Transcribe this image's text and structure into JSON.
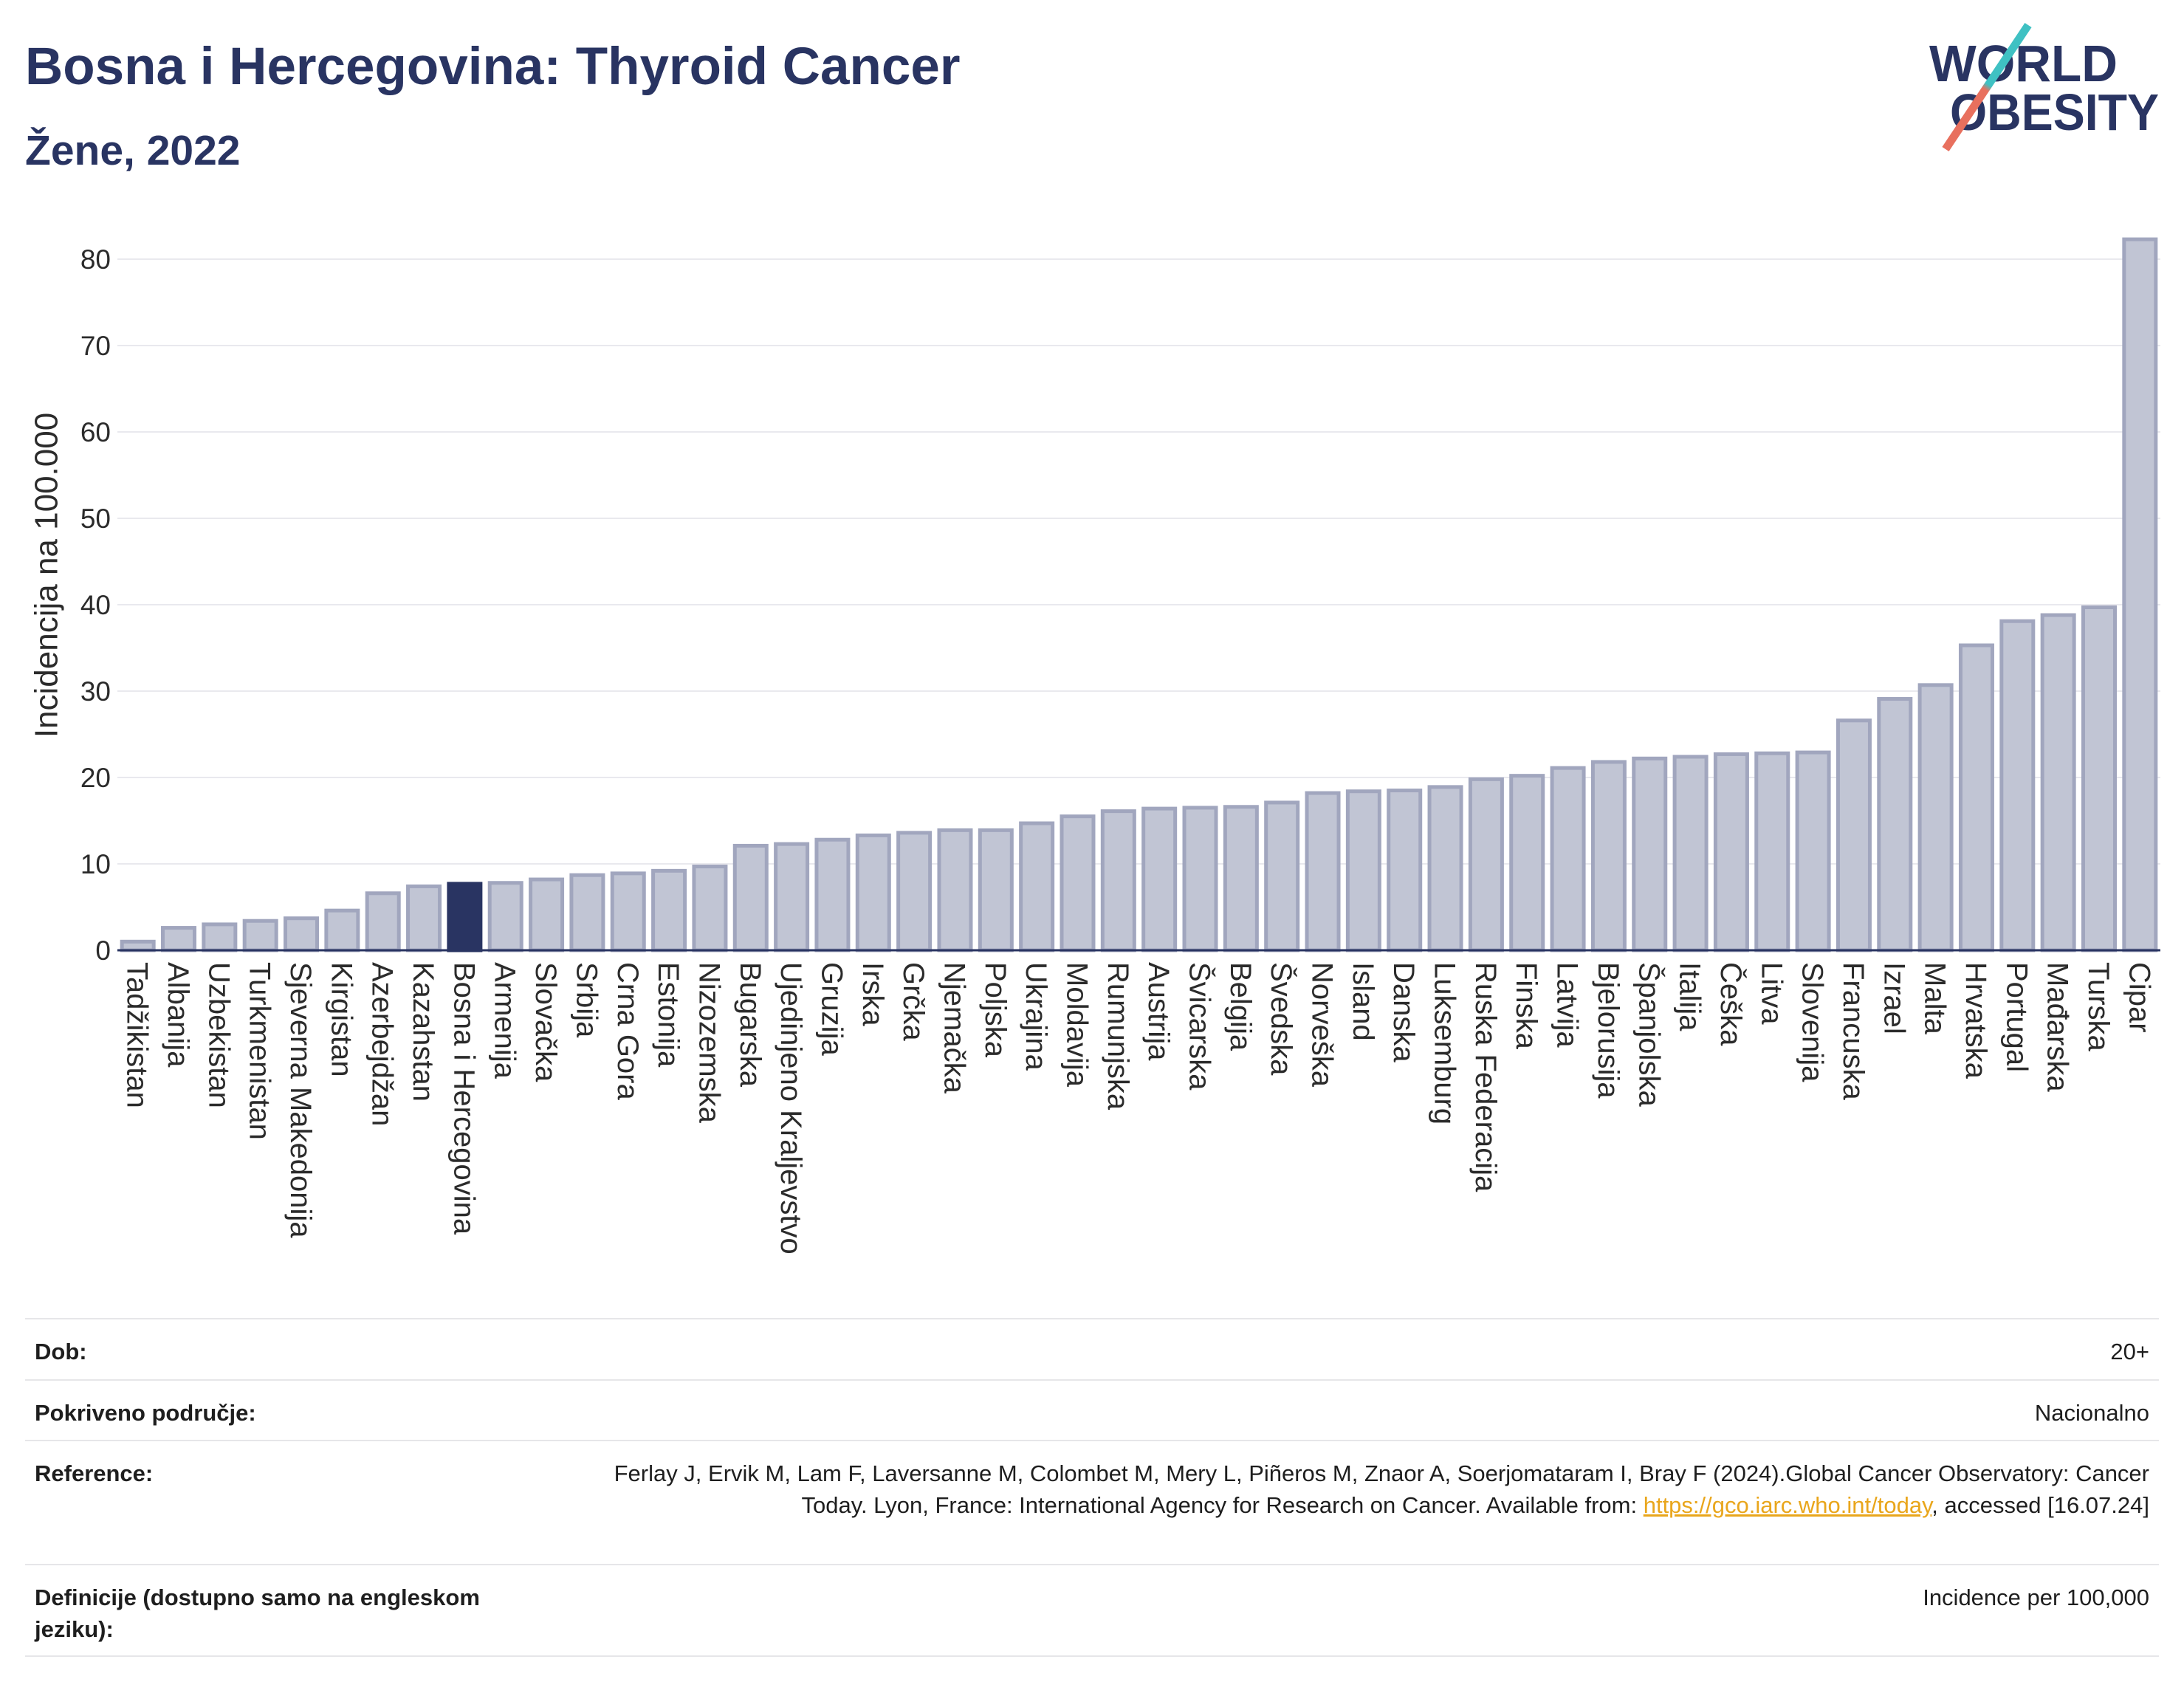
{
  "chart_data": {
    "type": "bar",
    "title": "Bosna i Hercegovina: Thyroid Cancer",
    "subtitle": "Žene, 2022",
    "xlabel": "",
    "ylabel": "Incidencija na 100.000",
    "ylim": [
      0,
      85
    ],
    "yticks": [
      0,
      10,
      20,
      30,
      40,
      50,
      60,
      70,
      80
    ],
    "grid": true,
    "highlight_index": 8,
    "categories": [
      "Tadžikistan",
      "Albanija",
      "Uzbekistan",
      "Turkmenistan",
      "Sjeverna Makedonija",
      "Kirgistan",
      "Azerbejdžan",
      "Kazahstan",
      "Bosna i Hercegovina",
      "Armenija",
      "Slovačka",
      "Srbija",
      "Crna Gora",
      "Estonija",
      "Nizozemska",
      "Bugarska",
      "Ujedinjeno Kraljevstvo",
      "Gruzija",
      "Irska",
      "Grčka",
      "Njemačka",
      "Poljska",
      "Ukrajina",
      "Moldavija",
      "Rumunjska",
      "Austrija",
      "Švicarska",
      "Belgija",
      "Švedska",
      "Norveška",
      "Island",
      "Danska",
      "Luksemburg",
      "Ruska Federacija",
      "Finska",
      "Latvija",
      "Bjelorusija",
      "Španjolska",
      "Italija",
      "Češka",
      "Litva",
      "Slovenija",
      "Francuska",
      "Izrael",
      "Malta",
      "Hrvatska",
      "Portugal",
      "Mađarska",
      "Turska",
      "Cipar"
    ],
    "values": [
      1.0,
      2.6,
      3.0,
      3.4,
      3.7,
      4.6,
      6.6,
      7.4,
      7.7,
      7.8,
      8.2,
      8.7,
      8.9,
      9.2,
      9.7,
      12.1,
      12.3,
      12.8,
      13.3,
      13.6,
      13.9,
      13.9,
      14.7,
      15.5,
      16.1,
      16.4,
      16.5,
      16.6,
      17.1,
      18.2,
      18.4,
      18.5,
      18.9,
      19.8,
      20.2,
      21.1,
      21.8,
      22.2,
      22.4,
      22.7,
      22.8,
      22.9,
      26.6,
      29.1,
      30.7,
      35.3,
      38.1,
      38.8,
      39.7,
      82.3
    ]
  },
  "logo": {
    "line1": "WORLD",
    "line2": "OBESITY"
  },
  "info_table": {
    "rows": [
      {
        "label": "Dob:",
        "value": "20+"
      },
      {
        "label": "Pokriveno područje:",
        "value": "Nacionalno"
      },
      {
        "label": "Reference:",
        "value_before_link": "Ferlay J, Ervik M, Lam F, Laversanne M, Colombet M, Mery L, Piñeros M, Znaor A, Soerjomataram I, Bray F (2024).Global Cancer Observatory: Cancer Today. Lyon, France: International Agency for Research on Cancer. Available from: ",
        "link": "https://gco.iarc.who.int/today",
        "value_after_link": ", accessed [16.07.24]"
      },
      {
        "label": "Definicije (dostupno samo na engleskom jeziku):",
        "value": "Incidence per 100,000"
      }
    ]
  },
  "colors": {
    "primary": "#293462",
    "bar": "#c1c5d4",
    "bar_stroke": "#a1a6be",
    "link": "#e9a61c",
    "logo_teal": "#3fc1c3",
    "logo_coral": "#e8705e"
  }
}
